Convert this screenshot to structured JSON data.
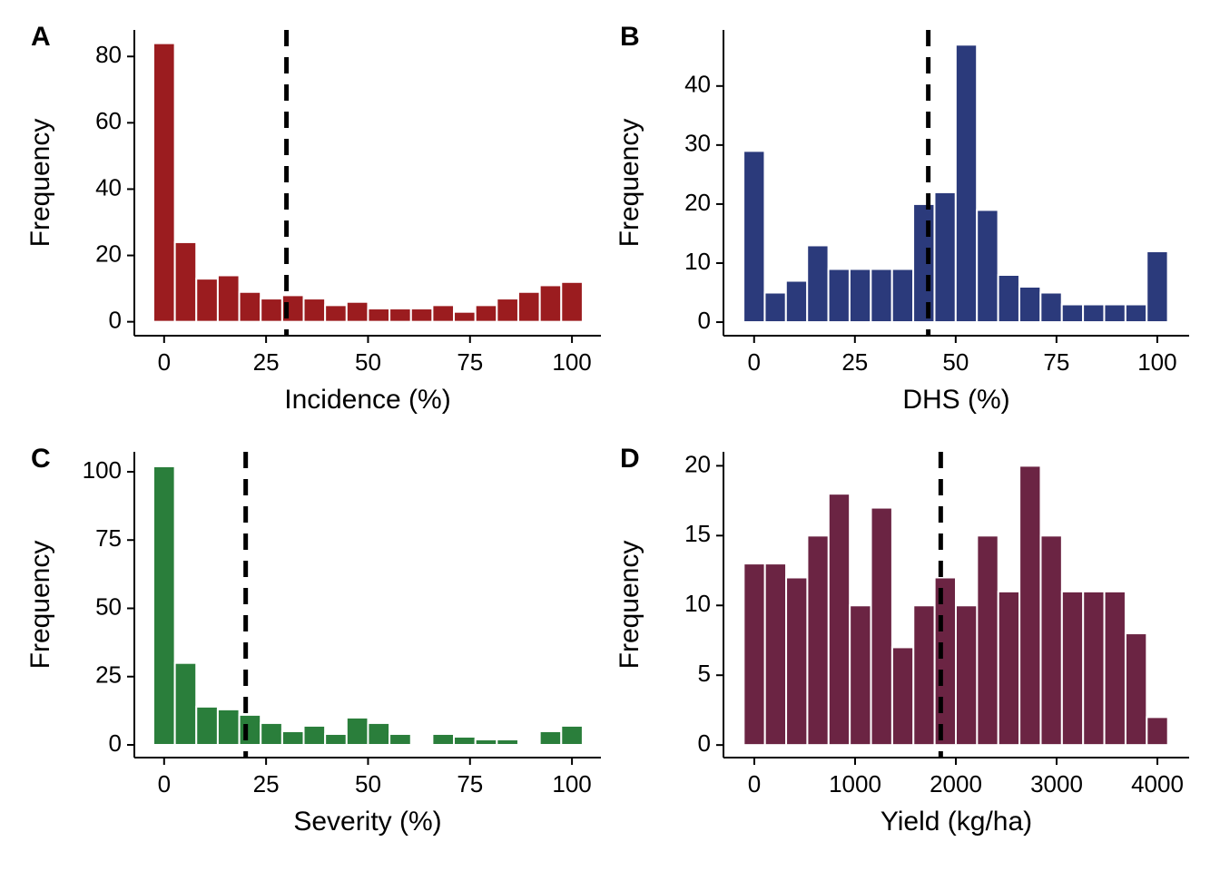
{
  "chart_data": [
    {
      "type": "histogram",
      "tag": "A",
      "xlabel": "Incidence (%)",
      "ylabel": "Frequency",
      "color": "#9b1c1f",
      "bins": [
        -2.63,
        2.63,
        7.89,
        13.16,
        18.42,
        23.68,
        28.95,
        34.21,
        39.47,
        44.74,
        50,
        55.26,
        60.53,
        65.79,
        71.05,
        76.32,
        81.58,
        86.84,
        92.11,
        97.37,
        102.63
      ],
      "values": [
        84,
        24,
        13,
        14,
        9,
        7,
        8,
        7,
        5,
        6,
        4,
        4,
        4,
        5,
        3,
        5,
        7,
        9,
        11,
        12
      ],
      "xlim": [
        -7.3,
        107.1
      ],
      "ylim": [
        -4.2,
        88
      ],
      "xticks": [
        0,
        25,
        50,
        75,
        100
      ],
      "yticks": [
        0,
        20,
        40,
        60,
        80
      ],
      "vline": 30
    },
    {
      "type": "histogram",
      "tag": "B",
      "xlabel": "DHS (%)",
      "ylabel": "Frequency",
      "color": "#2b3a7b",
      "bins": [
        -2.63,
        2.63,
        7.89,
        13.16,
        18.42,
        23.68,
        28.95,
        34.21,
        39.47,
        44.74,
        50,
        55.26,
        60.53,
        65.79,
        71.05,
        76.32,
        81.58,
        86.84,
        92.11,
        97.37,
        102.63
      ],
      "values": [
        29,
        5,
        7,
        13,
        9,
        9,
        9,
        9,
        20,
        22,
        47,
        19,
        8,
        6,
        5,
        3,
        3,
        3,
        3,
        12
      ],
      "xlim": [
        -7.6,
        107.9
      ],
      "ylim": [
        -2.3,
        49.5
      ],
      "xticks": [
        0,
        25,
        50,
        75,
        100
      ],
      "yticks": [
        0,
        10,
        20,
        30,
        40
      ],
      "vline": 43.2
    },
    {
      "type": "histogram",
      "tag": "C",
      "xlabel": "Severity (%)",
      "ylabel": "Frequency",
      "color": "#2a7e3b",
      "bins": [
        -2.63,
        2.63,
        7.89,
        13.16,
        18.42,
        23.68,
        28.95,
        34.21,
        39.47,
        44.74,
        50,
        55.26,
        60.53,
        65.79,
        71.05,
        76.32,
        81.58,
        86.84,
        92.11,
        97.37,
        102.63
      ],
      "values": [
        102,
        30,
        14,
        13,
        11,
        8,
        5,
        7,
        4,
        10,
        8,
        4,
        0,
        4,
        3,
        2,
        2,
        0,
        5,
        7
      ],
      "xlim": [
        -7.3,
        107.1
      ],
      "ylim": [
        -4.65,
        107.3
      ],
      "xticks": [
        0,
        25,
        50,
        75,
        100
      ],
      "yticks": [
        0,
        25,
        50,
        75,
        100
      ],
      "vline": 20
    },
    {
      "type": "histogram",
      "tag": "D",
      "xlabel": "Yield (kg/ha)",
      "ylabel": "Frequency",
      "color": "#6b2443",
      "bins": [
        -105,
        105.5,
        316,
        526.5,
        737,
        947.5,
        1158,
        1368.5,
        1579,
        1789.5,
        2000,
        2210.5,
        2421,
        2631.5,
        2842,
        3052.5,
        3263,
        3473.5,
        3684,
        3894.5,
        4105
      ],
      "values": [
        13,
        13,
        12,
        15,
        18,
        10,
        17,
        7,
        10,
        12,
        10,
        15,
        11,
        20,
        15,
        11,
        11,
        11,
        8,
        2
      ],
      "xlim": [
        -306,
        4315
      ],
      "ylim": [
        -0.9,
        21
      ],
      "xticks": [
        0,
        1000,
        2000,
        3000,
        4000
      ],
      "yticks": [
        0,
        5,
        10,
        15,
        20
      ],
      "vline": 1850
    }
  ]
}
